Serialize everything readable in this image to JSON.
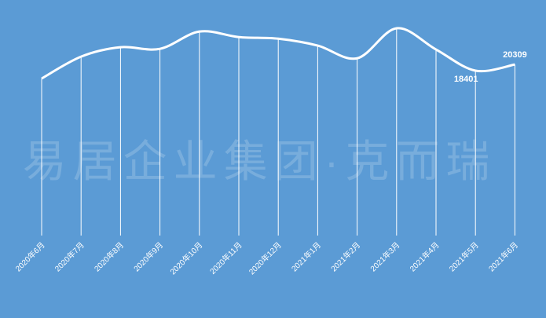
{
  "chart_data": {
    "type": "line",
    "watermark": "易居企业集团·克而瑞",
    "categories": [
      "2020年6月",
      "2020年7月",
      "2020年8月",
      "2020年9月",
      "2020年10月",
      "2020年11月",
      "2020年12月",
      "2021年1月",
      "2021年2月",
      "2021年3月",
      "2021年4月",
      "2021年5月",
      "2021年6月"
    ],
    "values": [
      16000,
      22700,
      25600,
      25100,
      30400,
      28700,
      28200,
      26100,
      22200,
      31400,
      24900,
      18401,
      20309
    ],
    "labeled": [
      11,
      12
    ],
    "color": "#ffffff",
    "background": "#5b9bd5"
  }
}
